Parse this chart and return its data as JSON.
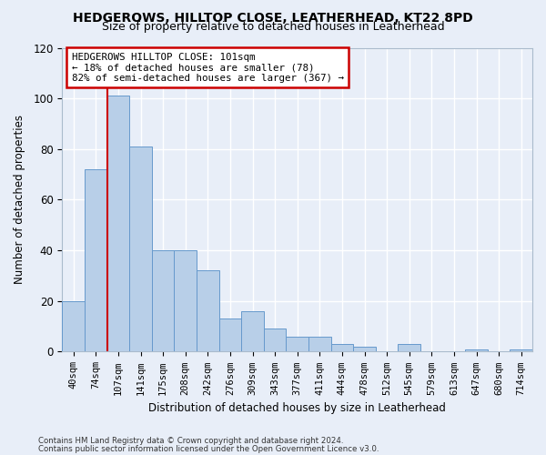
{
  "title1": "HEDGEROWS, HILLTOP CLOSE, LEATHERHEAD, KT22 8PD",
  "title2": "Size of property relative to detached houses in Leatherhead",
  "xlabel": "Distribution of detached houses by size in Leatherhead",
  "ylabel": "Number of detached properties",
  "categories": [
    "40sqm",
    "74sqm",
    "107sqm",
    "141sqm",
    "175sqm",
    "208sqm",
    "242sqm",
    "276sqm",
    "309sqm",
    "343sqm",
    "377sqm",
    "411sqm",
    "444sqm",
    "478sqm",
    "512sqm",
    "545sqm",
    "579sqm",
    "613sqm",
    "647sqm",
    "680sqm",
    "714sqm"
  ],
  "values": [
    20,
    72,
    101,
    81,
    40,
    40,
    32,
    13,
    16,
    9,
    6,
    6,
    3,
    2,
    0,
    3,
    0,
    0,
    1,
    0,
    1
  ],
  "bar_color": "#b8cfe8",
  "bar_edge_color": "#6699cc",
  "highlight_line_color": "#cc0000",
  "ylim": [
    0,
    120
  ],
  "yticks": [
    0,
    20,
    40,
    60,
    80,
    100,
    120
  ],
  "annotation_title": "HEDGEROWS HILLTOP CLOSE: 101sqm",
  "annotation_line1": "← 18% of detached houses are smaller (78)",
  "annotation_line2": "82% of semi-detached houses are larger (367) →",
  "annotation_box_color": "#ffffff",
  "annotation_box_edge": "#cc0000",
  "footnote1": "Contains HM Land Registry data © Crown copyright and database right 2024.",
  "footnote2": "Contains public sector information licensed under the Open Government Licence v3.0.",
  "background_color": "#e8eef8",
  "grid_color": "#ffffff",
  "title_fontsize": 10,
  "subtitle_fontsize": 9
}
